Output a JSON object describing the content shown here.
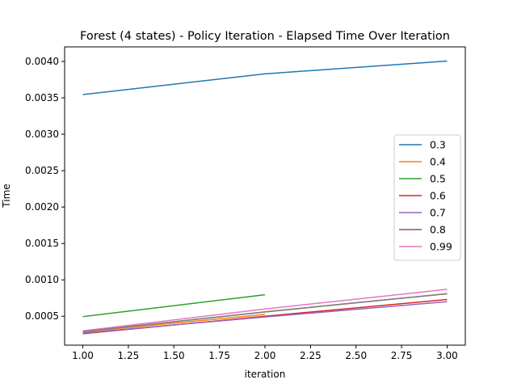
{
  "chart_data": {
    "type": "line",
    "title": "Forest (4 states) - Policy Iteration - Elapsed Time Over Iteration",
    "xlabel": "iteration",
    "ylabel": "Time",
    "xlim": [
      0.9,
      3.1
    ],
    "ylim": [
      0.000103,
      0.0042
    ],
    "x_ticks": [
      1.0,
      1.25,
      1.5,
      1.75,
      2.0,
      2.25,
      2.5,
      2.75,
      3.0
    ],
    "x_tick_labels": [
      "1.00",
      "1.25",
      "1.50",
      "1.75",
      "2.00",
      "2.25",
      "2.50",
      "2.75",
      "3.00"
    ],
    "y_ticks": [
      0.0005,
      0.001,
      0.0015,
      0.002,
      0.0025,
      0.003,
      0.0035,
      0.004
    ],
    "y_tick_labels": [
      "0.0005",
      "0.0010",
      "0.0015",
      "0.0020",
      "0.0025",
      "0.0030",
      "0.0035",
      "0.0040"
    ],
    "grid": false,
    "legend_position": "center-right",
    "series": [
      {
        "name": "0.3",
        "color": "#1f77b4",
        "x": [
          1,
          2,
          3
        ],
        "y": [
          0.003545,
          0.00383,
          0.004005
        ]
      },
      {
        "name": "0.4",
        "color": "#ff7f0e",
        "x": [
          1,
          2
        ],
        "y": [
          0.000285,
          0.000525
        ]
      },
      {
        "name": "0.5",
        "color": "#2ca02c",
        "x": [
          1,
          2
        ],
        "y": [
          0.000495,
          0.000795
        ]
      },
      {
        "name": "0.6",
        "color": "#d62728",
        "x": [
          1,
          2,
          3
        ],
        "y": [
          0.00026,
          0.0005,
          0.00073
        ]
      },
      {
        "name": "0.7",
        "color": "#9467bd",
        "x": [
          1,
          2,
          3
        ],
        "y": [
          0.00027,
          0.00049,
          0.0007
        ]
      },
      {
        "name": "0.8",
        "color": "#8c564b",
        "x": [
          1,
          2,
          3
        ],
        "y": [
          0.00029,
          0.00056,
          0.00081
        ]
      },
      {
        "name": "0.99",
        "color": "#e377c2",
        "x": [
          1,
          2,
          3
        ],
        "y": [
          0.0003,
          0.0006,
          0.00087
        ]
      }
    ],
    "extra_lines": [
      {
        "color": "#7f7f7f",
        "x": [
          1,
          2,
          3
        ],
        "y": [
          0.00029,
          0.00056,
          0.00081
        ]
      }
    ]
  }
}
